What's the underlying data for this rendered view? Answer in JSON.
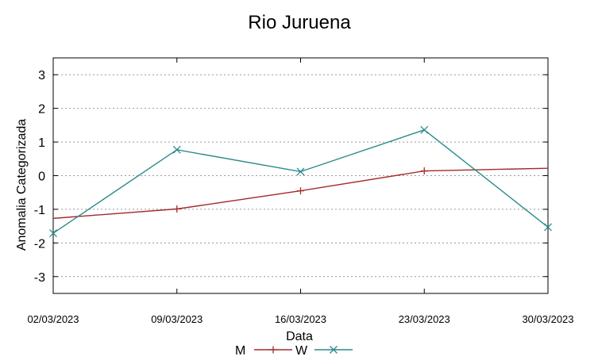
{
  "chart_data": {
    "type": "line",
    "title": "Rio Juruena",
    "xlabel": "Data",
    "ylabel": "Anomalia Categorizada",
    "x": [
      "02/03/2023",
      "09/03/2023",
      "16/03/2023",
      "23/03/2023",
      "30/03/2023"
    ],
    "ylim": [
      -3.5,
      3.5
    ],
    "yticks": [
      -3,
      -2,
      -1,
      0,
      1,
      2,
      3
    ],
    "grid": true,
    "legend_position": "bottom-center",
    "series": [
      {
        "name": "M",
        "color": "#a52a2a",
        "marker": "plus",
        "values": [
          -1.27,
          -0.99,
          -0.45,
          0.14,
          0.22
        ],
        "marked": [
          false,
          true,
          true,
          true,
          false
        ]
      },
      {
        "name": "W",
        "color": "#2a8a8a",
        "marker": "x",
        "values": [
          -1.71,
          0.77,
          0.12,
          1.36,
          -1.53
        ],
        "marked": [
          true,
          true,
          true,
          true,
          true
        ]
      }
    ]
  }
}
